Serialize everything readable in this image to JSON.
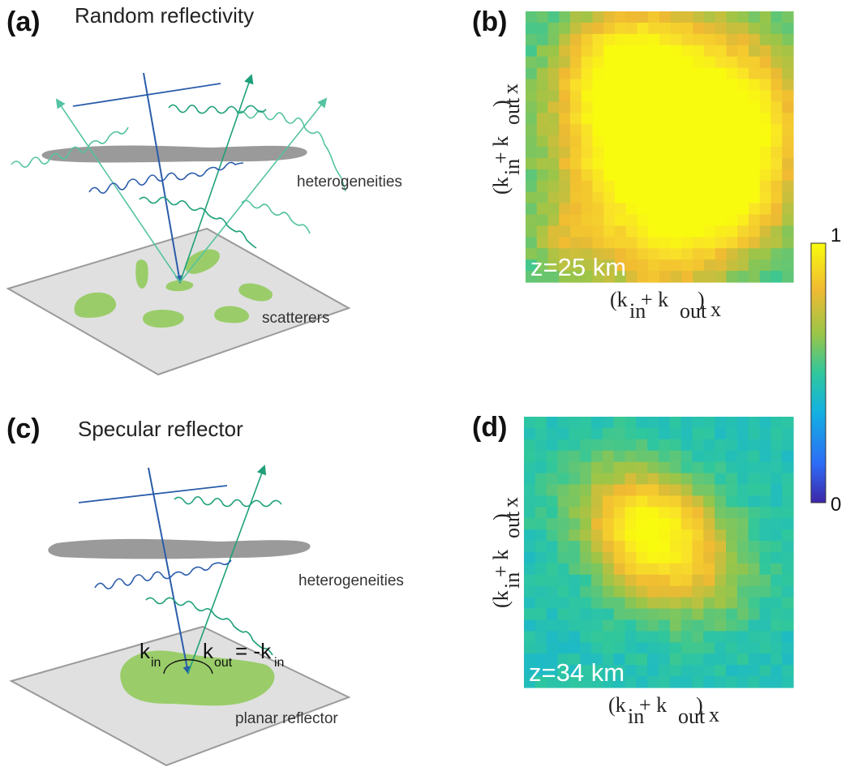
{
  "panels": {
    "a": {
      "label": "(a)",
      "title": "Random reflectivity",
      "heterogeneities": "heterogeneities",
      "scatterers": "scatterers"
    },
    "b": {
      "label": "(b)",
      "depth": "z=25 km"
    },
    "c": {
      "label": "(c)",
      "title": "Specular reflector",
      "heterogeneities": "heterogeneities",
      "reflector": "planar reflector"
    },
    "d": {
      "label": "(d)",
      "depth": "z=34 km"
    }
  },
  "axes": {
    "x": {
      "k1": "(k",
      "in": "in",
      "plus": " + k",
      "out": "out",
      "close": ")",
      "x": "x"
    },
    "y": {
      "k1": "(k",
      "in": "in",
      "plus": " + k",
      "out": "out",
      "close": ")",
      "x": "x"
    }
  },
  "annotation": {
    "k": "k",
    "in": "in",
    "eq": " = -k"
  },
  "colorbar": {
    "max": "1",
    "min": "0"
  },
  "colors": {
    "incident": "#2a5caa",
    "scattered": "#55c3a2",
    "specular": "#1fa07a",
    "heterogeneity": "#9a9a9a",
    "plane": "#e0e0e0",
    "scatterer": "#9acd6a"
  },
  "colormap": [
    "#3e26a8",
    "#2d6cf6",
    "#12b1e1",
    "#30c79c",
    "#99c549",
    "#f0ba32",
    "#f9e02a",
    "#f9fb0e"
  ],
  "heatmap_b": {
    "size": 24,
    "centers": [
      [
        0.6,
        0.45,
        0.28,
        1.0
      ],
      [
        0.52,
        0.48,
        0.24,
        0.8
      ],
      [
        0.35,
        0.2,
        0.14,
        0.55
      ],
      [
        0.75,
        0.7,
        0.12,
        0.45
      ],
      [
        0.82,
        0.4,
        0.1,
        0.35
      ],
      [
        0.15,
        0.85,
        0.1,
        0.3
      ],
      [
        0.5,
        0.9,
        0.15,
        0.35
      ]
    ],
    "base": 0.42,
    "scale": 0.55
  },
  "heatmap_d": {
    "size": 24,
    "centers": [
      [
        0.52,
        0.48,
        0.16,
        0.75
      ],
      [
        0.45,
        0.4,
        0.12,
        0.5
      ],
      [
        0.3,
        0.3,
        0.15,
        0.3
      ],
      [
        0.7,
        0.6,
        0.15,
        0.25
      ]
    ],
    "base": 0.38,
    "scale": 0.5
  }
}
